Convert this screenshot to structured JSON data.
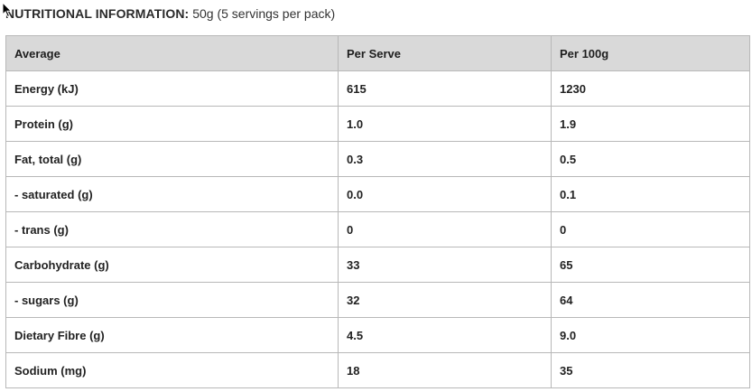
{
  "heading": {
    "label": "NUTRITIONAL INFORMATION:",
    "value": "50g (5 servings per pack)"
  },
  "table": {
    "columns": [
      "Average",
      "Per Serve",
      "Per 100g"
    ],
    "rows": [
      {
        "name": "Energy (kJ)",
        "per_serve": "615",
        "per_100g": "1230"
      },
      {
        "name": "Protein (g)",
        "per_serve": "1.0",
        "per_100g": "1.9"
      },
      {
        "name": "Fat, total (g)",
        "per_serve": "0.3",
        "per_100g": "0.5"
      },
      {
        "name": "- saturated (g)",
        "per_serve": "0.0",
        "per_100g": "0.1"
      },
      {
        "name": "- trans (g)",
        "per_serve": "0",
        "per_100g": "0"
      },
      {
        "name": "Carbohydrate (g)",
        "per_serve": "33",
        "per_100g": "65"
      },
      {
        "name": "- sugars (g)",
        "per_serve": "32",
        "per_100g": "64"
      },
      {
        "name": "Dietary Fibre (g)",
        "per_serve": "4.5",
        "per_100g": "9.0"
      },
      {
        "name": "Sodium (mg)",
        "per_serve": "18",
        "per_100g": "35"
      }
    ]
  },
  "icons": {
    "cursor": "mouse-pointer-icon"
  }
}
